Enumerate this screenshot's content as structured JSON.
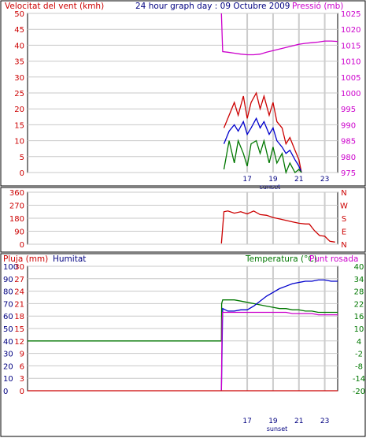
{
  "chart_data": [
    {
      "type": "line",
      "title": "24 hour graph day : 09 Octubre 2009",
      "left_label": "Velocitat del vent (kmh)",
      "right_label": "Pressió (mb)",
      "sunset_label": "sunset",
      "xlim": [
        0,
        24
      ],
      "x_ticks": [
        17,
        19,
        21,
        23
      ],
      "x_tick_labels": [
        "17",
        "19",
        "21",
        "23"
      ],
      "vertical_markers": [
        17,
        19,
        21,
        23
      ],
      "left_axis": {
        "lim": [
          0,
          50
        ],
        "ticks": [
          0,
          5,
          10,
          15,
          20,
          25,
          30,
          35,
          40,
          45,
          50
        ],
        "labels": [
          "0",
          "5",
          "10",
          "15",
          "20",
          "25",
          "30",
          "35",
          "40",
          "45",
          "50"
        ]
      },
      "right_axis": {
        "lim": [
          975,
          1025
        ],
        "ticks": [
          975,
          980,
          985,
          990,
          995,
          1000,
          1005,
          1010,
          1015,
          1020,
          1025
        ],
        "labels": [
          "975",
          "980",
          "985",
          "990",
          "995",
          "1000",
          "1005",
          "1010",
          "1015",
          "1020",
          "1025"
        ]
      },
      "series": [
        {
          "color": "#cc0000",
          "axis": "left",
          "x": [
            15.2,
            15.6,
            16.0,
            16.3,
            16.7,
            17.0,
            17.3,
            17.7,
            18.0,
            18.3,
            18.7,
            19.0,
            19.3,
            19.7,
            20.0,
            20.3,
            20.7,
            21.0,
            21.2
          ],
          "y": [
            14,
            18,
            22,
            18,
            24,
            17,
            22,
            25,
            20,
            24,
            18,
            22,
            16,
            14,
            9,
            11,
            7,
            4,
            0
          ]
        },
        {
          "color": "#0000cc",
          "axis": "left",
          "x": [
            15.2,
            15.6,
            16.0,
            16.3,
            16.7,
            17.0,
            17.3,
            17.7,
            18.0,
            18.3,
            18.7,
            19.0,
            19.3,
            19.7,
            20.0,
            20.3,
            20.7,
            21.0,
            21.2
          ],
          "y": [
            9,
            13,
            15,
            13,
            16,
            12,
            14,
            17,
            14,
            16,
            12,
            14,
            10,
            8,
            6,
            7,
            4,
            2,
            0
          ]
        },
        {
          "color": "#007700",
          "axis": "left",
          "x": [
            15.2,
            15.6,
            16.0,
            16.3,
            16.7,
            17.0,
            17.3,
            17.7,
            18.0,
            18.3,
            18.7,
            19.0,
            19.3,
            19.7,
            20.0,
            20.3,
            20.7,
            21.0,
            21.2
          ],
          "y": [
            1,
            10,
            3,
            10,
            6,
            2,
            9,
            10,
            6,
            10,
            3,
            8,
            3,
            6,
            0,
            3,
            0,
            1,
            0
          ]
        },
        {
          "color": "#cc00cc",
          "axis": "right",
          "x": [
            15.0,
            15.1,
            15.5,
            16.0,
            16.5,
            17.0,
            17.5,
            18.0,
            18.5,
            19.0,
            19.5,
            20.0,
            20.5,
            21.0,
            21.5,
            22.0,
            22.5,
            23.0,
            23.5,
            24.0
          ],
          "y": [
            1025,
            1013,
            1012.8,
            1012.5,
            1012.2,
            1012,
            1012,
            1012.2,
            1012.8,
            1013.3,
            1013.8,
            1014.3,
            1014.8,
            1015.3,
            1015.6,
            1015.8,
            1016,
            1016.3,
            1016.3,
            1016.2
          ]
        }
      ]
    },
    {
      "type": "line",
      "xlim": [
        0,
        24
      ],
      "vertical_markers": [
        17,
        19,
        21,
        23
      ],
      "left_axis": {
        "lim": [
          0,
          360
        ],
        "ticks": [
          0,
          90,
          180,
          270,
          360
        ],
        "labels": [
          "0",
          "90",
          "180",
          "270",
          "360"
        ]
      },
      "right_axis": {
        "lim": [
          0,
          360
        ],
        "ticks": [
          0,
          90,
          180,
          270,
          360
        ],
        "labels": [
          "N",
          "E",
          "S",
          "W",
          "N"
        ]
      },
      "series": [
        {
          "color": "#cc0000",
          "axis": "left",
          "x": [
            15.0,
            15.2,
            15.5,
            16.0,
            16.5,
            17.0,
            17.5,
            18.0,
            18.5,
            19.0,
            19.5,
            20.0,
            20.5,
            21.0,
            21.5,
            21.8,
            22.2,
            22.6,
            23.0,
            23.4,
            23.8
          ],
          "y": [
            5,
            225,
            230,
            215,
            225,
            210,
            230,
            205,
            200,
            185,
            175,
            165,
            155,
            145,
            140,
            140,
            95,
            60,
            55,
            20,
            15
          ]
        }
      ]
    },
    {
      "type": "line",
      "label_rain": "Pluja (mm)",
      "label_humidity": "Humitat",
      "label_temperature": "Temperatura (°C)",
      "label_dewpoint": "Punt rosada",
      "sunset_label": "sunset",
      "xlim": [
        0,
        24
      ],
      "x_ticks": [
        17,
        19,
        21,
        23
      ],
      "x_tick_labels": [
        "17",
        "19",
        "21",
        "23"
      ],
      "vertical_markers": [
        17,
        19,
        21,
        23
      ],
      "humidity_axis": {
        "lim": [
          0,
          100
        ],
        "ticks": [
          0,
          10,
          20,
          30,
          40,
          50,
          60,
          70,
          80,
          90,
          100
        ],
        "labels": [
          "0",
          "10",
          "20",
          "30",
          "40",
          "50",
          "60",
          "70",
          "80",
          "90",
          "100"
        ]
      },
      "rain_axis": {
        "lim": [
          0,
          30
        ],
        "ticks": [
          0,
          3,
          6,
          9,
          12,
          15,
          18,
          21,
          24,
          27,
          30
        ],
        "labels": [
          "0",
          "3",
          "6",
          "9",
          "12",
          "15",
          "18",
          "21",
          "24",
          "27",
          "30"
        ]
      },
      "temp_axis": {
        "lim": [
          -20,
          40
        ],
        "ticks": [
          -20,
          -14,
          -8,
          -2,
          4,
          10,
          16,
          22,
          28,
          34,
          40
        ],
        "labels": [
          "-20",
          "-14",
          "-8",
          "-2",
          "4",
          "10",
          "16",
          "22",
          "28",
          "34",
          "40"
        ]
      },
      "series": [
        {
          "color": "#007700",
          "axis": "humidity",
          "x": [
            0,
            15.0,
            15.02,
            15.1,
            15.5,
            16.0,
            16.5,
            17.0,
            17.5,
            18.0,
            18.5,
            19.0,
            19.5,
            20.0,
            20.5,
            21.0,
            21.5,
            22.0,
            22.5,
            23.0,
            23.5,
            24.0
          ],
          "y": [
            40,
            40,
            70,
            73,
            73,
            73,
            72,
            71,
            70,
            69,
            68,
            67,
            66,
            66,
            65,
            65,
            64,
            64,
            63,
            63,
            63,
            63
          ]
        },
        {
          "color": "#0000cc",
          "axis": "humidity",
          "x": [
            15.0,
            15.1,
            15.5,
            16.0,
            16.5,
            17.0,
            17.5,
            18.0,
            18.5,
            19.0,
            19.5,
            20.0,
            20.5,
            21.0,
            21.5,
            22.0,
            22.5,
            23.0,
            23.5,
            24.0
          ],
          "y": [
            0,
            66,
            64,
            64,
            65,
            65,
            68,
            72,
            76,
            79,
            82,
            84,
            86,
            87,
            88,
            88,
            89,
            89,
            88,
            88
          ]
        },
        {
          "color": "#cc00cc",
          "axis": "humidity",
          "x": [
            15.0,
            15.05,
            15.1,
            15.5,
            16.0,
            16.5,
            17.0,
            17.5,
            18.0,
            18.5,
            19.0,
            19.5,
            20.0,
            20.5,
            21.0,
            21.5,
            22.0,
            22.5,
            23.0,
            23.5,
            24.0
          ],
          "y": [
            0,
            56,
            63,
            63,
            63,
            63,
            63,
            63,
            63,
            63,
            63,
            63,
            63,
            62,
            62,
            62,
            62,
            61,
            61,
            61,
            61
          ]
        },
        {
          "color": "#cc0000",
          "axis": "rain",
          "x": [
            0,
            24
          ],
          "y": [
            0,
            0
          ]
        }
      ]
    }
  ]
}
